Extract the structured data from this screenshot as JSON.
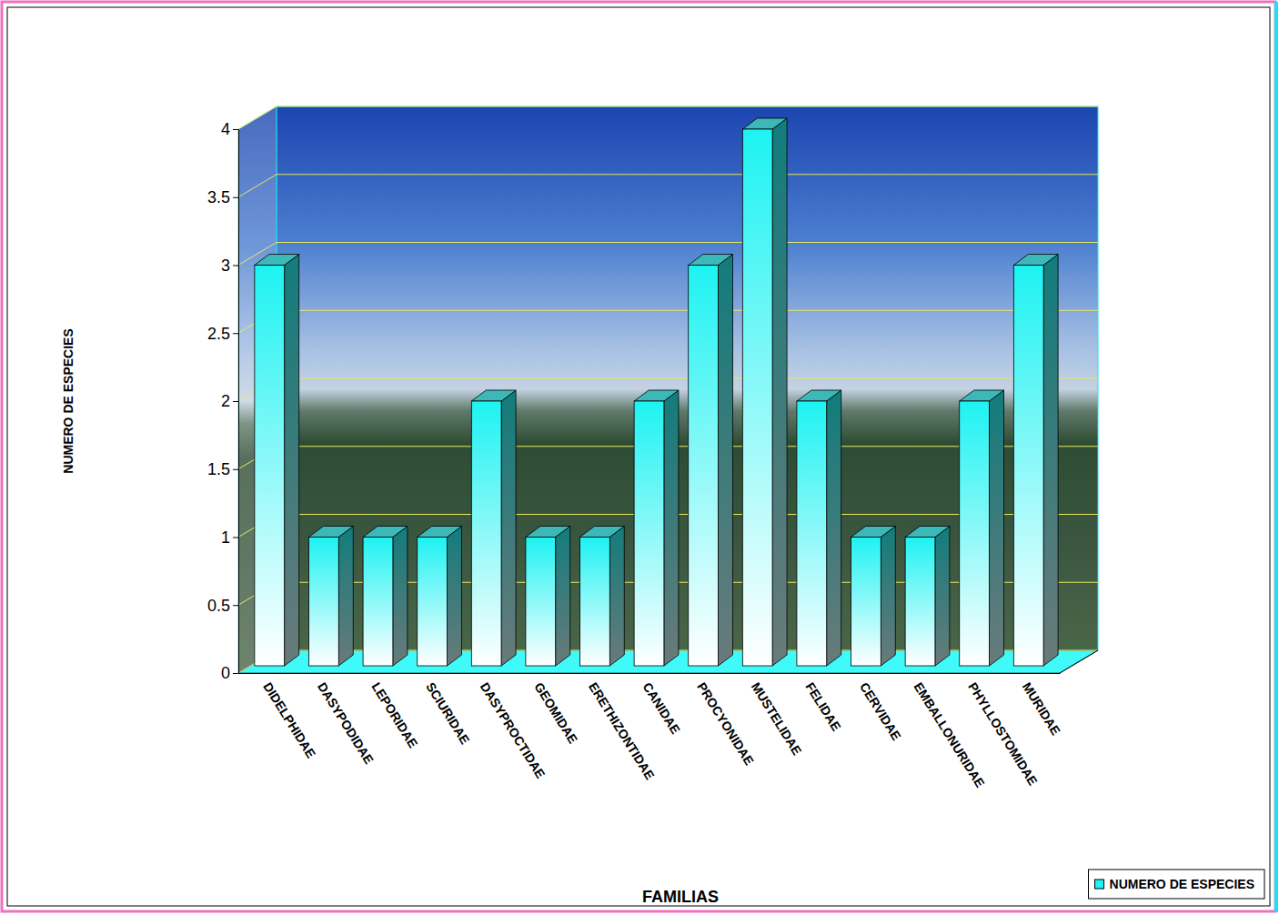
{
  "chart_data": {
    "type": "bar",
    "categories": [
      "DIDELPHIDAE",
      "DASYPODIDAE",
      "LEPORIDAE",
      "SCIURIDAE",
      "DASYPROCTIDAE",
      "GEOMIDAE",
      "ERETHIZONTIDAE",
      "CANIDAE",
      "PROCYONIDAE",
      "MUSTELIDAE",
      "FELIDAE",
      "CERVIDAE",
      "EMBALLONURIDAE",
      "PHYLLOSTOMIDAE",
      "MURIDAE"
    ],
    "series": [
      {
        "name": "NUMERO DE ESPECIES",
        "color": "#1ef2f2",
        "values": [
          3,
          1,
          1,
          1,
          2,
          1,
          1,
          2,
          3,
          4,
          2,
          1,
          1,
          2,
          3
        ]
      }
    ],
    "xlabel": "FAMILIAS",
    "ylabel": "NUMERO DE ESPECIES",
    "ylim": [
      0,
      4
    ],
    "yticks": [
      0,
      0.5,
      1,
      1.5,
      2,
      2.5,
      3,
      3.5,
      4
    ],
    "grid": true,
    "legend": "bottom-right"
  }
}
